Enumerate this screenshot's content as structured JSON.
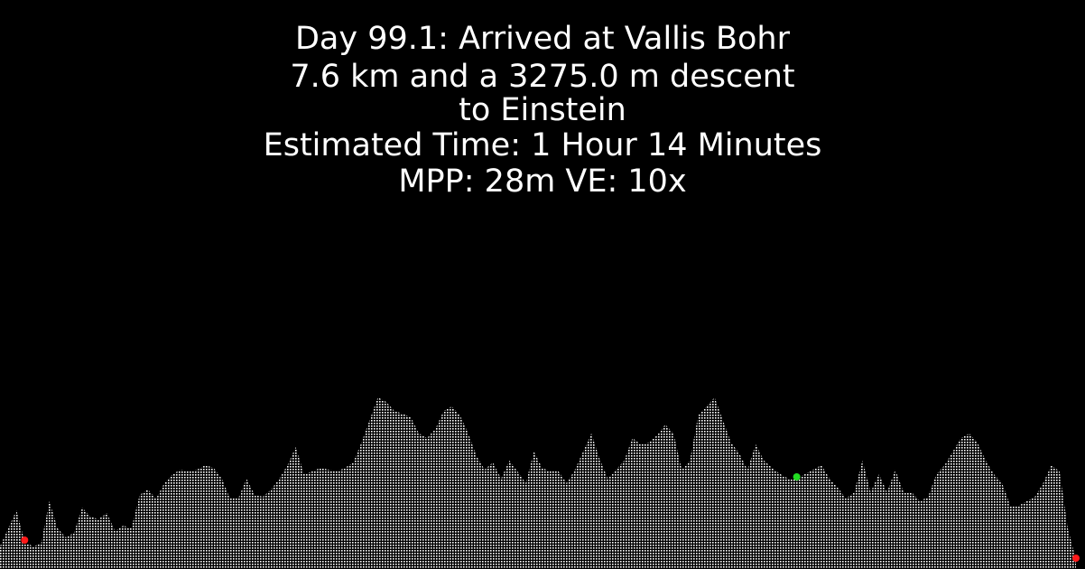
{
  "header": {
    "line1": "Day 99.1: Arrived at Vallis Bohr",
    "line2": "7.6 km and a 3275.0 m descent",
    "line3": "to Einstein",
    "line4": "Estimated Time: 1 Hour 14 Minutes",
    "line5": "MPP: 28m VE: 10x"
  },
  "colors": {
    "background": "#000000",
    "text": "#ffffff",
    "terrain_fill": "#ffffff",
    "start_marker": "#ff1a1a",
    "current_marker": "#22dd22",
    "end_marker": "#ff1a1a"
  },
  "elevation_profile": {
    "heights": [
      25,
      45,
      65,
      30,
      25,
      28,
      75,
      45,
      35,
      40,
      68,
      58,
      55,
      62,
      42,
      48,
      45,
      82,
      88,
      78,
      95,
      105,
      110,
      108,
      110,
      115,
      112,
      100,
      78,
      78,
      100,
      82,
      80,
      88,
      100,
      115,
      135,
      105,
      108,
      112,
      110,
      108,
      112,
      118,
      140,
      165,
      190,
      185,
      175,
      172,
      168,
      150,
      145,
      155,
      175,
      180,
      170,
      150,
      125,
      110,
      118,
      100,
      120,
      108,
      95,
      130,
      112,
      108,
      108,
      95,
      110,
      130,
      150,
      122,
      100,
      110,
      120,
      145,
      138,
      140,
      148,
      160,
      150,
      110,
      120,
      170,
      180,
      190,
      165,
      140,
      128,
      110,
      138,
      120,
      112,
      105,
      100,
      100,
      105,
      110,
      115,
      100,
      90,
      78,
      85,
      120,
      85,
      105,
      85,
      110,
      85,
      85,
      75,
      80,
      105,
      115,
      130,
      145,
      150,
      140,
      120,
      105,
      95,
      70,
      70,
      75,
      80,
      95,
      115,
      108,
      45,
      10
    ]
  },
  "markers": {
    "start": {
      "index": 3
    },
    "current": {
      "index": 97
    },
    "end": {
      "index": 131
    }
  }
}
